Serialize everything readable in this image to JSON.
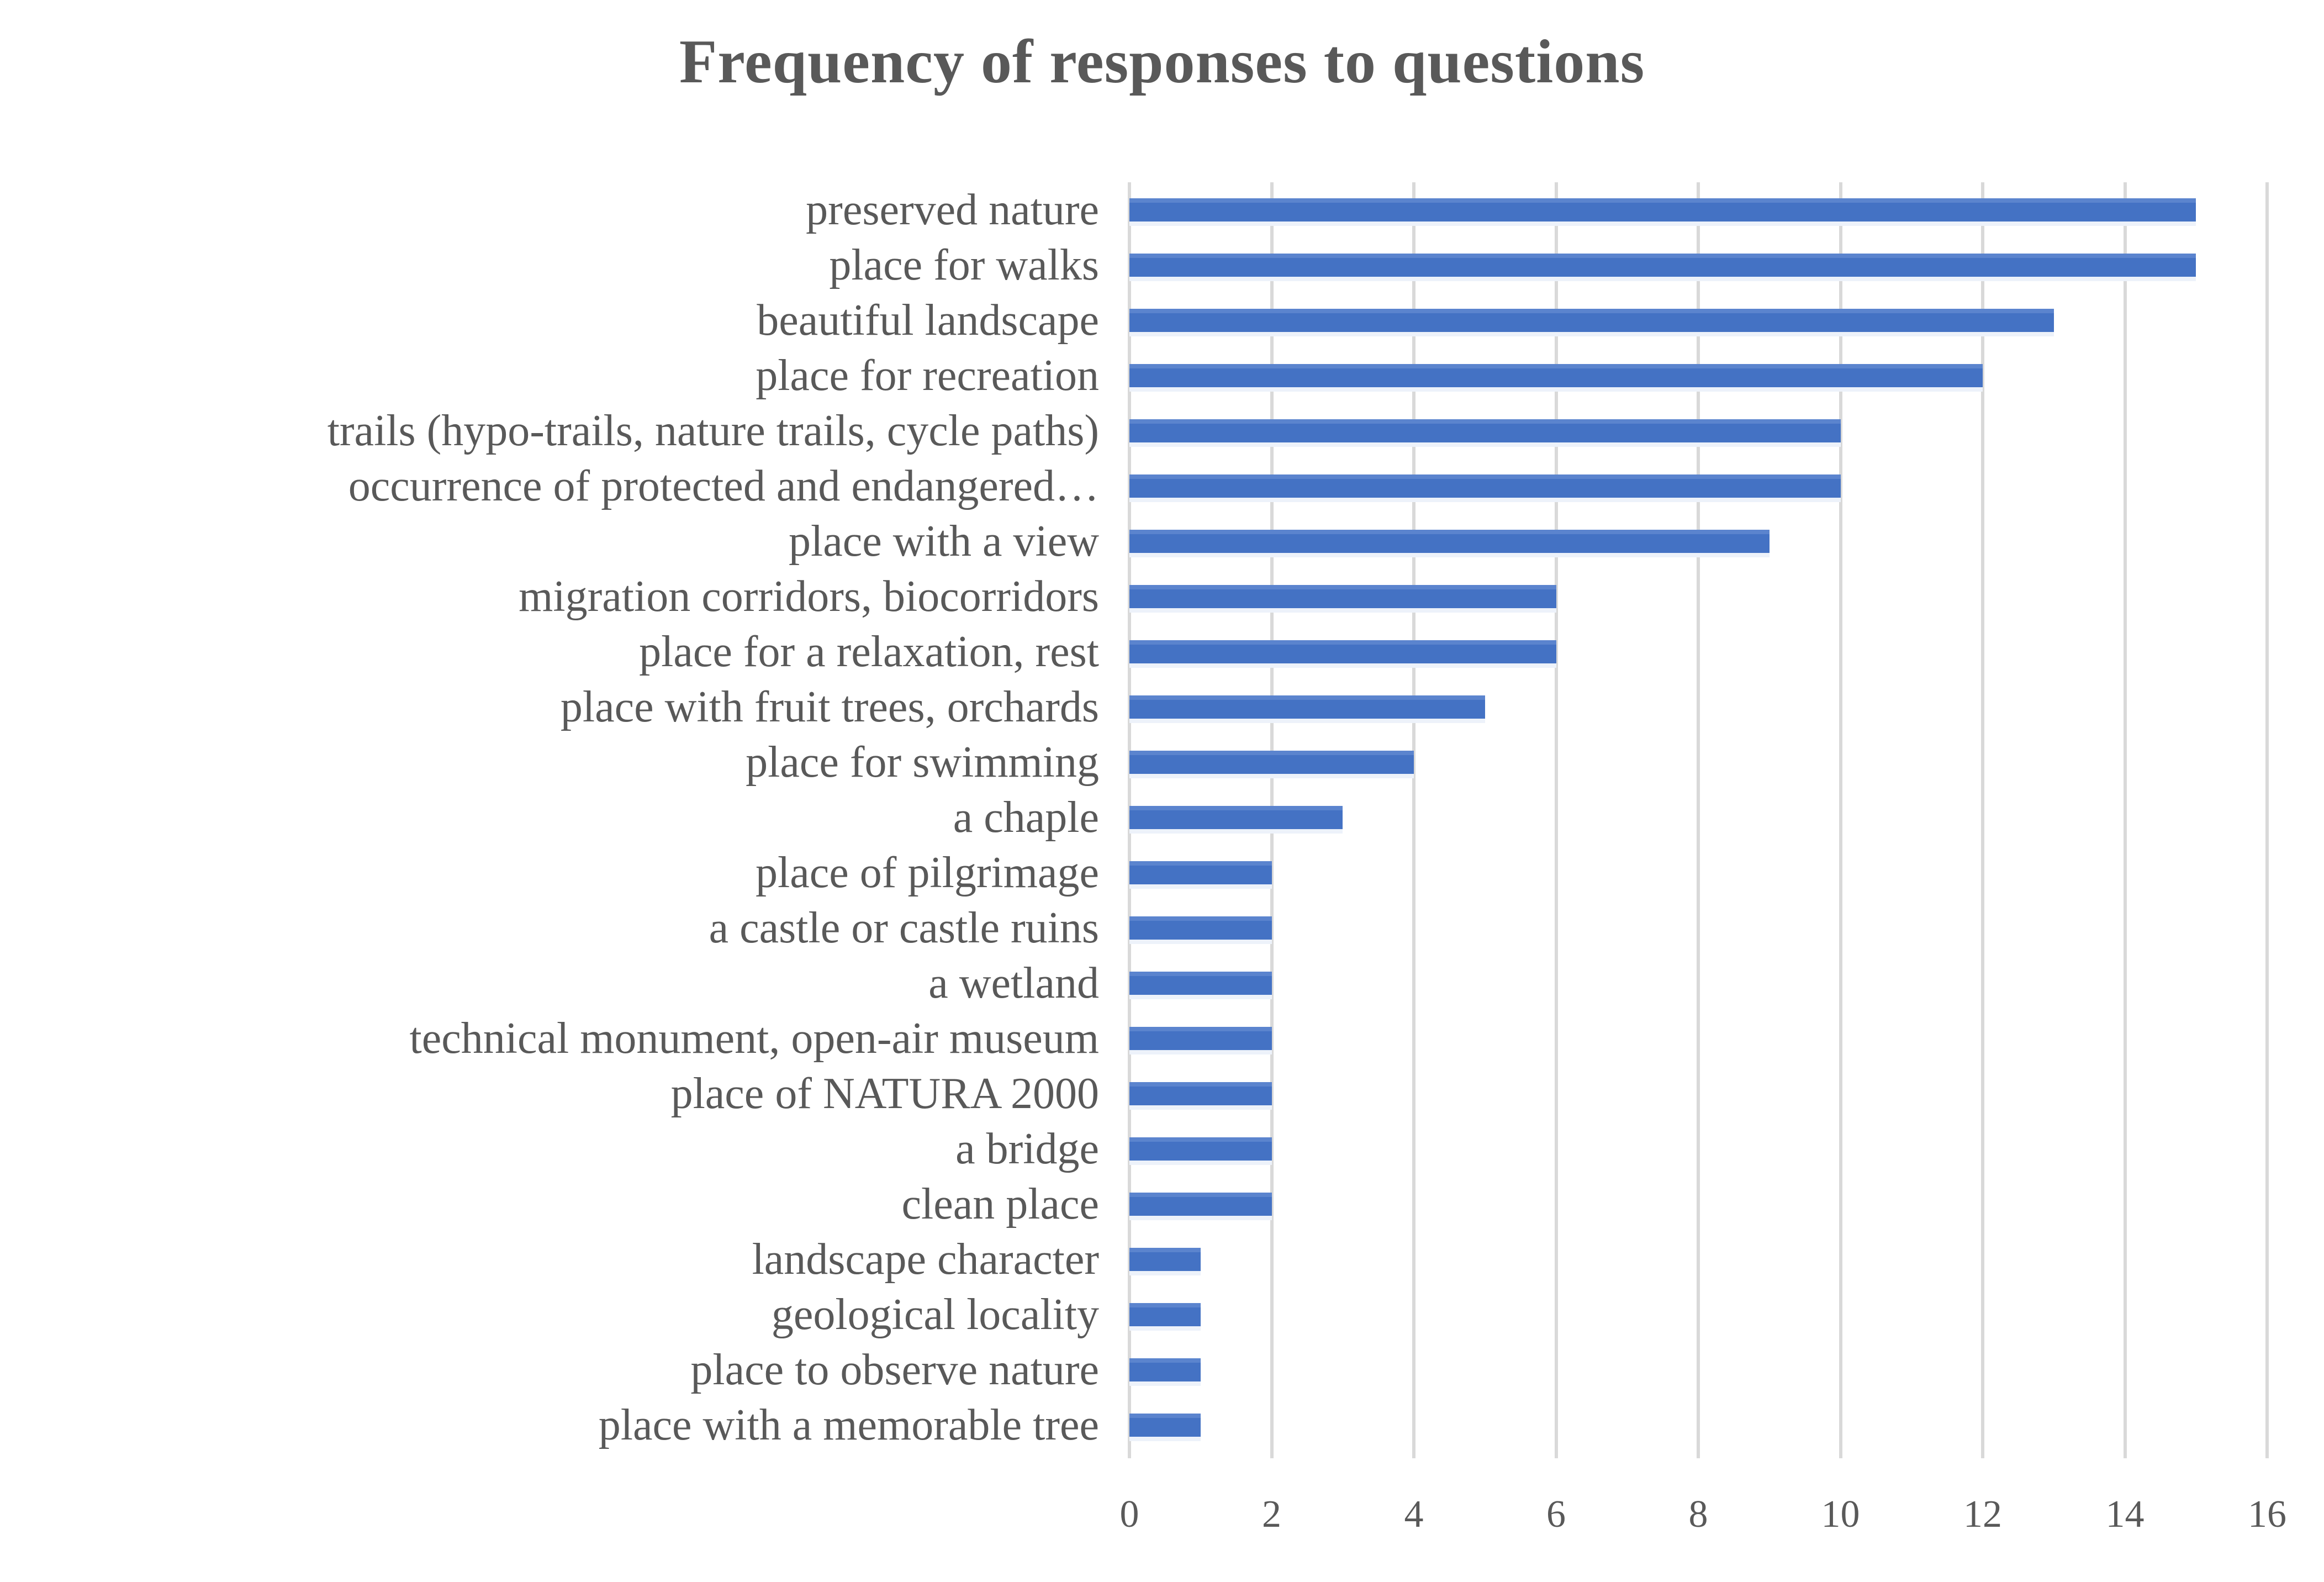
{
  "chart_data": {
    "type": "bar",
    "orientation": "horizontal",
    "title": "Frequency of responses to questions",
    "categories": [
      "preserved nature",
      "place for walks",
      "beautiful landscape",
      "place for recreation",
      "trails (hypo-trails, nature trails, cycle paths)",
      "occurrence of protected and endangered…",
      "place with a view",
      "migration corridors, biocorridors",
      "place for  a relaxation, rest",
      "place with fruit trees, orchards",
      "place for swimming",
      "a chaple",
      "place of pilgrimage",
      "a castle or castle ruins",
      "a wetland",
      "technical monument, open-air museum",
      "place of NATURA 2000",
      "a bridge",
      "clean place",
      "landscape character",
      "geological locality",
      "place to observe nature",
      "place with a memorable tree"
    ],
    "values": [
      15,
      15,
      13,
      12,
      10,
      10,
      9,
      6,
      6,
      5,
      4,
      3,
      2,
      2,
      2,
      2,
      2,
      2,
      2,
      1,
      1,
      1,
      1
    ],
    "xlabel": "",
    "ylabel": "",
    "xlim": [
      0,
      16
    ],
    "x_ticks": [
      0,
      2,
      4,
      6,
      8,
      10,
      12,
      14,
      16
    ],
    "grid": true,
    "legend": false,
    "colors": {
      "bar": "#4472c4",
      "bar_top_edge": "#5b84ce",
      "bar_underline": "#edf2fa",
      "gridline": "#d9d9d9",
      "text": "#595959",
      "background": "#ffffff"
    }
  }
}
